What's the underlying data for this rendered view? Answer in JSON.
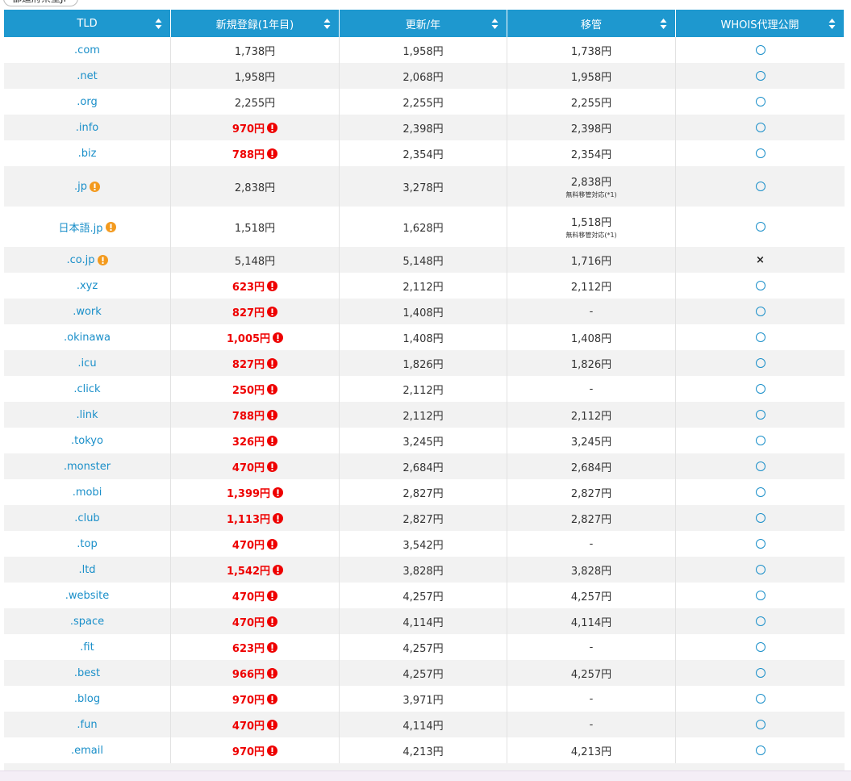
{
  "top_button": "都道府県型JP",
  "table": {
    "headers": [
      "TLD",
      "新規登録(1年目)",
      "更新/年",
      "移管",
      "WHOIS代理公開"
    ],
    "rows": [
      {
        "tld": ".com",
        "new": "1,738円",
        "renew": "1,958円",
        "transfer": "1,738円",
        "whois": "○"
      },
      {
        "tld": ".net",
        "new": "1,958円",
        "renew": "2,068円",
        "transfer": "1,958円",
        "whois": "○"
      },
      {
        "tld": ".org",
        "new": "2,255円",
        "renew": "2,255円",
        "transfer": "2,255円",
        "whois": "○"
      },
      {
        "tld": ".info",
        "new": "970円",
        "new_sale": true,
        "renew": "2,398円",
        "transfer": "2,398円",
        "whois": "○"
      },
      {
        "tld": ".biz",
        "new": "788円",
        "new_sale": true,
        "renew": "2,354円",
        "transfer": "2,354円",
        "whois": "○"
      },
      {
        "tld": ".jp",
        "tld_note": true,
        "new": "2,838円",
        "renew": "3,278円",
        "transfer": "2,838円",
        "transfer_note": "無料移管対応(*1)",
        "whois": "○"
      },
      {
        "tld": "日本語.jp",
        "tld_note": true,
        "new": "1,518円",
        "renew": "1,628円",
        "transfer": "1,518円",
        "transfer_note": "無料移管対応(*1)",
        "whois": "○"
      },
      {
        "tld": ".co.jp",
        "tld_note": true,
        "new": "5,148円",
        "renew": "5,148円",
        "transfer": "1,716円",
        "whois": "×"
      },
      {
        "tld": ".xyz",
        "new": "623円",
        "new_sale": true,
        "renew": "2,112円",
        "transfer": "2,112円",
        "whois": "○"
      },
      {
        "tld": ".work",
        "new": "827円",
        "new_sale": true,
        "renew": "1,408円",
        "transfer": "-",
        "whois": "○"
      },
      {
        "tld": ".okinawa",
        "new": "1,005円",
        "new_sale": true,
        "renew": "1,408円",
        "transfer": "1,408円",
        "whois": "○"
      },
      {
        "tld": ".icu",
        "new": "827円",
        "new_sale": true,
        "renew": "1,826円",
        "transfer": "1,826円",
        "whois": "○"
      },
      {
        "tld": ".click",
        "new": "250円",
        "new_sale": true,
        "renew": "2,112円",
        "transfer": "-",
        "whois": "○"
      },
      {
        "tld": ".link",
        "new": "788円",
        "new_sale": true,
        "renew": "2,112円",
        "transfer": "2,112円",
        "whois": "○"
      },
      {
        "tld": ".tokyo",
        "new": "326円",
        "new_sale": true,
        "renew": "3,245円",
        "transfer": "3,245円",
        "whois": "○"
      },
      {
        "tld": ".monster",
        "new": "470円",
        "new_sale": true,
        "renew": "2,684円",
        "transfer": "2,684円",
        "whois": "○"
      },
      {
        "tld": ".mobi",
        "new": "1,399円",
        "new_sale": true,
        "renew": "2,827円",
        "transfer": "2,827円",
        "whois": "○"
      },
      {
        "tld": ".club",
        "new": "1,113円",
        "new_sale": true,
        "renew": "2,827円",
        "transfer": "2,827円",
        "whois": "○"
      },
      {
        "tld": ".top",
        "new": "470円",
        "new_sale": true,
        "renew": "3,542円",
        "transfer": "-",
        "whois": "○"
      },
      {
        "tld": ".ltd",
        "new": "1,542円",
        "new_sale": true,
        "renew": "3,828円",
        "transfer": "3,828円",
        "whois": "○"
      },
      {
        "tld": ".website",
        "new": "470円",
        "new_sale": true,
        "renew": "4,257円",
        "transfer": "4,257円",
        "whois": "○"
      },
      {
        "tld": ".space",
        "new": "470円",
        "new_sale": true,
        "renew": "4,114円",
        "transfer": "4,114円",
        "whois": "○"
      },
      {
        "tld": ".fit",
        "new": "623円",
        "new_sale": true,
        "renew": "4,257円",
        "transfer": "-",
        "whois": "○"
      },
      {
        "tld": ".best",
        "new": "966円",
        "new_sale": true,
        "renew": "4,257円",
        "transfer": "4,257円",
        "whois": "○"
      },
      {
        "tld": ".blog",
        "new": "970円",
        "new_sale": true,
        "renew": "3,971円",
        "transfer": "-",
        "whois": "○"
      },
      {
        "tld": ".fun",
        "new": "470円",
        "new_sale": true,
        "renew": "4,114円",
        "transfer": "-",
        "whois": "○"
      },
      {
        "tld": ".email",
        "new": "970円",
        "new_sale": true,
        "renew": "4,213円",
        "transfer": "4,213円",
        "whois": "○"
      }
    ]
  }
}
